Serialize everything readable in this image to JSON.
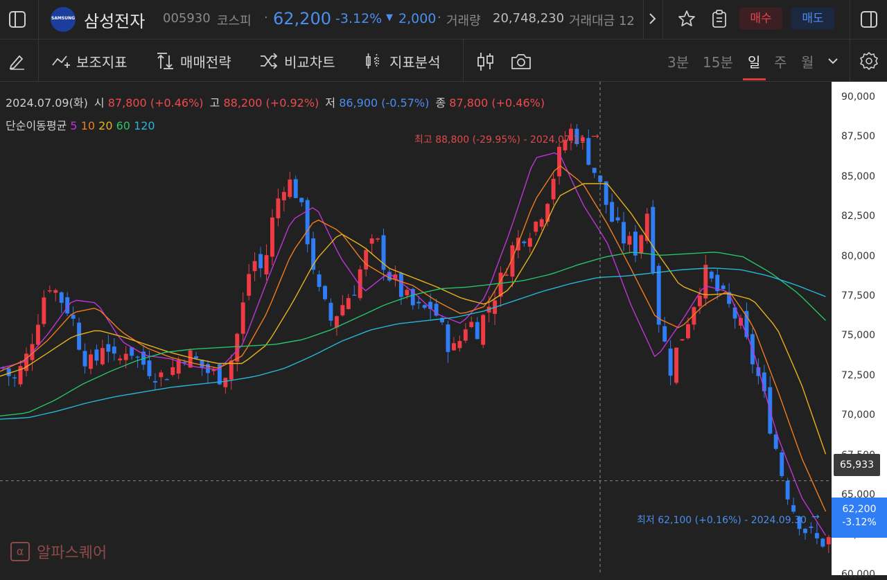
{
  "header": {
    "stock_name": "삼성전자",
    "stock_code": "005930",
    "market": "코스피",
    "price": "62,200",
    "change_pct": "-3.12%",
    "change_abs": "2,000",
    "volume_label": "거래량",
    "volume": "20,748,230",
    "trade_amount_label": "거래대금 12",
    "logo_text": "SAMSUNG",
    "buy_label": "매수",
    "sell_label": "매도"
  },
  "toolbar": {
    "indicator_label": "보조지표",
    "strategy_label": "매매전략",
    "compare_label": "비교차트",
    "analysis_label": "지표분석",
    "periods": [
      "3분",
      "15분",
      "일",
      "주",
      "월"
    ],
    "active_period": "일"
  },
  "legend": {
    "date": "2024.07.09(화)",
    "open_label": "시",
    "open": "87,800",
    "open_chg": "(+0.46%)",
    "high_label": "고",
    "high": "88,200",
    "high_chg": "(+0.92%)",
    "low_label": "저",
    "low": "86,900",
    "low_chg": "(-0.57%)",
    "close_label": "종",
    "close": "87,800",
    "close_chg": "(+0.46%)",
    "ma_title": "단순이동평균",
    "ma_periods": [
      "5",
      "10",
      "20",
      "60",
      "120"
    ]
  },
  "annotations": {
    "max_label": "최고 88,800 (-29.95%) - 2024.07.11",
    "min_label": "최저 62,100 (+0.16%) - 2024.09.30"
  },
  "axis": {
    "ticks": [
      "90,000",
      "87,500",
      "85,000",
      "82,500",
      "80,000",
      "77,500",
      "75,000",
      "72,500",
      "70,000",
      "67,500",
      "65,000",
      "62,500",
      "60,000"
    ],
    "crosshair_price": "65,933",
    "current_price": "62,200",
    "current_change": "-3.12%"
  },
  "colors": {
    "up": "#ee3b44",
    "down": "#2f7ef5",
    "ma5": "#c034d8",
    "ma10": "#f07c1e",
    "ma20": "#e8b21b",
    "ma60": "#27c46a",
    "ma120": "#27b6d9"
  },
  "watermark": "알파스퀘어",
  "chart_data": {
    "type": "line",
    "ylim": [
      60000,
      91000
    ],
    "x_count": 142,
    "close_path_anchors": [
      73000,
      72200,
      73500,
      76000,
      78500,
      77500,
      76500,
      74000,
      73000,
      75000,
      73000,
      74500,
      73500,
      73000,
      72500,
      73000,
      74000,
      73500,
      72800,
      72500,
      73000,
      76000,
      80000,
      79000,
      83000,
      85000,
      84000,
      81000,
      77500,
      76000,
      77000,
      78000,
      80000,
      81000,
      79000,
      78000,
      77000,
      76500,
      77000,
      75000,
      74000,
      76000,
      75500,
      77000,
      78500,
      80500,
      81500,
      82000,
      83500,
      86000,
      88000,
      87500,
      86000,
      84000,
      82000,
      81000,
      80500,
      83000,
      76000,
      73000,
      75000,
      77000,
      79000,
      78000,
      77000,
      76000,
      74000,
      72000,
      69000,
      66000,
      64000,
      62800,
      62100,
      62200
    ],
    "series": [
      {
        "name": "5",
        "values": [
          73000,
          73400,
          75200,
          77300,
          77100,
          74700,
          73800,
          73600,
          73100,
          72900,
          74500,
          78500,
          82300,
          83200,
          80000,
          77800,
          79000,
          77800,
          76400,
          75800,
          77500,
          81600,
          86200,
          86600,
          83300,
          80900,
          76900,
          73600,
          75800,
          78200,
          77800,
          74200,
          68800,
          64900,
          62500
        ]
      },
      {
        "name": "10",
        "values": [
          72800,
          73500,
          74800,
          76500,
          76800,
          75300,
          74300,
          73700,
          73300,
          73000,
          73800,
          76500,
          80200,
          82400,
          81600,
          79600,
          78700,
          78200,
          77200,
          76400,
          76900,
          79500,
          83500,
          85800,
          84600,
          82100,
          79200,
          76200,
          75500,
          77000,
          77900,
          75700,
          71700,
          67400,
          64000
        ]
      },
      {
        "name": "20",
        "values": [
          72500,
          73000,
          74000,
          75000,
          75400,
          75000,
          74500,
          74000,
          73600,
          73300,
          73300,
          74500,
          77000,
          79800,
          81500,
          80600,
          79300,
          78700,
          78100,
          77400,
          77000,
          78000,
          80500,
          83800,
          84600,
          84600,
          82700,
          80400,
          78200,
          77600,
          77700,
          77300,
          75500,
          72000,
          67600
        ]
      },
      {
        "name": "60",
        "values": [
          70000,
          70200,
          71000,
          72000,
          72800,
          73500,
          74000,
          74200,
          74300,
          74400,
          74500,
          74800,
          75400,
          76200,
          77000,
          77600,
          78000,
          78100,
          78300,
          78500,
          78900,
          79500,
          80000,
          80300,
          80100,
          80200,
          80300,
          80000,
          79000,
          77700,
          76000
        ]
      },
      {
        "name": "120",
        "values": [
          69800,
          69900,
          70300,
          70800,
          71200,
          71500,
          71800,
          72000,
          72200,
          72500,
          73000,
          73800,
          74700,
          75400,
          75800,
          76000,
          76200,
          76600,
          77200,
          77800,
          78300,
          78700,
          78800,
          79000,
          79200,
          79300,
          79200,
          78800,
          78200,
          77500
        ]
      }
    ]
  }
}
